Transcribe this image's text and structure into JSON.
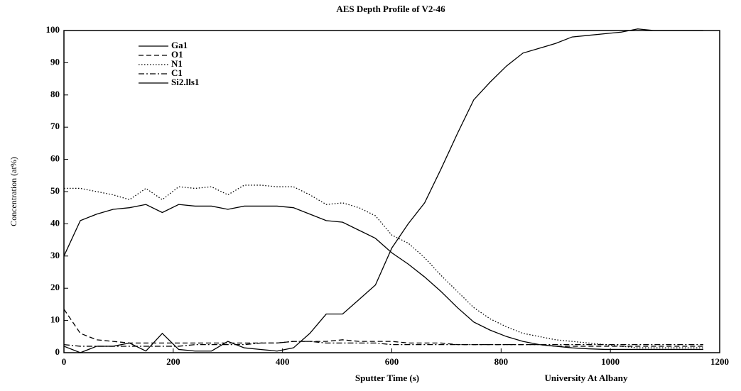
{
  "chart_data": {
    "type": "line",
    "title": "AES Depth Profile of V2-46",
    "xlabel": "Sputter Time (s)",
    "ylabel": "Concentration (at%)",
    "annotation": "University At Albany",
    "x": [
      0,
      30,
      60,
      90,
      120,
      150,
      180,
      210,
      240,
      270,
      300,
      330,
      360,
      390,
      420,
      450,
      480,
      510,
      540,
      570,
      600,
      630,
      660,
      690,
      720,
      750,
      780,
      810,
      840,
      870,
      900,
      930,
      960,
      990,
      1020,
      1050,
      1080,
      1110,
      1140,
      1170
    ],
    "series": [
      {
        "name": "Ga1",
        "color": "#000000",
        "style": "solid",
        "values": [
          30,
          41,
          43,
          44.5,
          45,
          46,
          43.5,
          46,
          45.5,
          45.5,
          44.5,
          45.5,
          45.5,
          45.5,
          45,
          43,
          41,
          40.5,
          38,
          35.5,
          31,
          27.5,
          23.5,
          19,
          14,
          9.5,
          7,
          5,
          3.5,
          2.5,
          2,
          1.5,
          1.2,
          1,
          1,
          1,
          1,
          1,
          1,
          1
        ]
      },
      {
        "name": "O1",
        "color": "#000000",
        "style": "dashed",
        "values": [
          13.5,
          6,
          4,
          3.5,
          3,
          3,
          3,
          3,
          3,
          3,
          3,
          3,
          3,
          3,
          3.5,
          3.5,
          3.5,
          4,
          3.5,
          3.5,
          3.5,
          3,
          3,
          3,
          2.5,
          2.5,
          2.5,
          2.5,
          2.5,
          2.5,
          2,
          2,
          2,
          2,
          2,
          2,
          2,
          2,
          2,
          2
        ]
      },
      {
        "name": "N1",
        "color": "#000000",
        "style": "dotted",
        "values": [
          51,
          51,
          50,
          49,
          47.5,
          51,
          47.5,
          51.5,
          51,
          51.5,
          49,
          52,
          52,
          51.5,
          51.5,
          49,
          46,
          46.5,
          45,
          42.5,
          36.5,
          34,
          29.5,
          24,
          19,
          14,
          10.5,
          8,
          6,
          5,
          4,
          3.5,
          3,
          2.5,
          2,
          1.5,
          1.5,
          1.5,
          1.5,
          1.5
        ]
      },
      {
        "name": "C1",
        "color": "#000000",
        "style": "dashdot",
        "values": [
          2.5,
          2,
          2,
          2,
          2,
          2,
          2,
          2,
          2.5,
          2.5,
          2.5,
          2.5,
          3,
          3,
          3.5,
          3.5,
          3,
          3,
          3,
          3,
          2.5,
          2.5,
          2.5,
          2.5,
          2.5,
          2.5,
          2.5,
          2.5,
          2.5,
          2.5,
          2.5,
          2.5,
          2.5,
          2.5,
          2.5,
          2.5,
          2.5,
          2.5,
          2.5,
          2.5
        ]
      },
      {
        "name": "Si2.lls1",
        "color": "#000000",
        "style": "solid",
        "values": [
          2,
          0,
          2,
          2,
          3,
          0.5,
          6,
          1,
          0.5,
          0.5,
          3.5,
          1.5,
          1,
          0.5,
          1.5,
          6,
          12,
          12,
          16.5,
          21,
          32.5,
          40,
          46.5,
          57,
          68,
          78.5,
          84,
          89,
          93,
          94.5,
          96,
          98,
          98.5,
          99,
          99.5,
          100.5,
          100,
          100,
          100,
          100
        ]
      }
    ],
    "xlim": [
      0,
      1200
    ],
    "xticks": [
      0,
      200,
      400,
      600,
      800,
      1000,
      1200
    ],
    "ylim": [
      0,
      100
    ],
    "yticks": [
      0,
      10,
      20,
      30,
      40,
      50,
      60,
      70,
      80,
      90,
      100
    ],
    "legend": "upper left"
  }
}
